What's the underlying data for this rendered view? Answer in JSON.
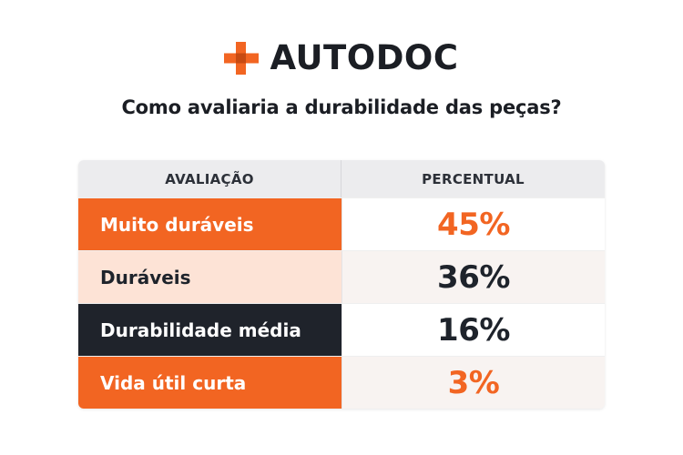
{
  "brand": {
    "name": "AUTODOC",
    "accent": "#f26522",
    "icon": "plus-cross-icon"
  },
  "question": "Como avaliaria a durabilidade das peças?",
  "chart_data": {
    "type": "table",
    "columns": [
      "AVALIAÇÃO",
      "PERCENTUAL"
    ],
    "rows": [
      {
        "label": "Muito duráveis",
        "value": "45%",
        "label_bg": "#f26522",
        "label_color": "#ffffff",
        "value_bg": "#ffffff",
        "value_color": "#f26522"
      },
      {
        "label": "Duráveis",
        "value": "36%",
        "label_bg": "#fde3d6",
        "label_color": "#1e232b",
        "value_bg": "#f8f3f1",
        "value_color": "#1e232b"
      },
      {
        "label": "Durabilidade média",
        "value": "16%",
        "label_bg": "#1f232b",
        "label_color": "#ffffff",
        "value_bg": "#ffffff",
        "value_color": "#1e232b"
      },
      {
        "label": "Vida útil curta",
        "value": "3%",
        "label_bg": "#f26522",
        "label_color": "#ffffff",
        "value_bg": "#f8f3f1",
        "value_color": "#f26522"
      }
    ]
  }
}
